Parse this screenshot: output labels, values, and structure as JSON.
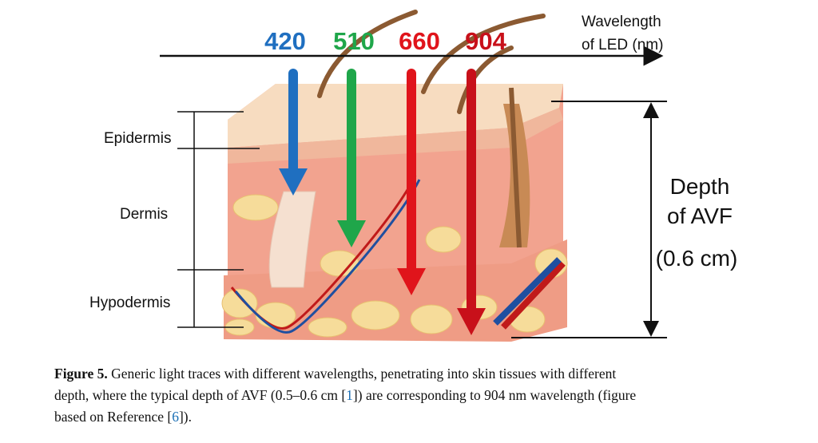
{
  "header": {
    "axis_label": [
      "Wavelength",
      "of LED (nm)"
    ]
  },
  "arrows": [
    {
      "label": 420,
      "color": "#1f6fc0"
    },
    {
      "label": 510,
      "color": "#1fa64a"
    },
    {
      "label": 660,
      "color": "#e0141b"
    },
    {
      "label": 904,
      "color": "#c8101a"
    }
  ],
  "layers": [
    "Epidermis",
    "Dermis",
    "Hypodermis"
  ],
  "depth": [
    "Depth",
    "of AVF",
    "(0.6 cm)"
  ],
  "caption": {
    "label": "Figure 5.",
    "lines": [
      [
        " Generic light traces with different wavelengths, penetrating into skin tissues with different"
      ],
      [
        "depth, where the typical depth of AVF (0.5–0.6 cm [",
        "1",
        "]) are corresponding to 904 nm wavelength (figure"
      ],
      [
        "based on Reference [",
        "6",
        "])."
      ]
    ]
  }
}
